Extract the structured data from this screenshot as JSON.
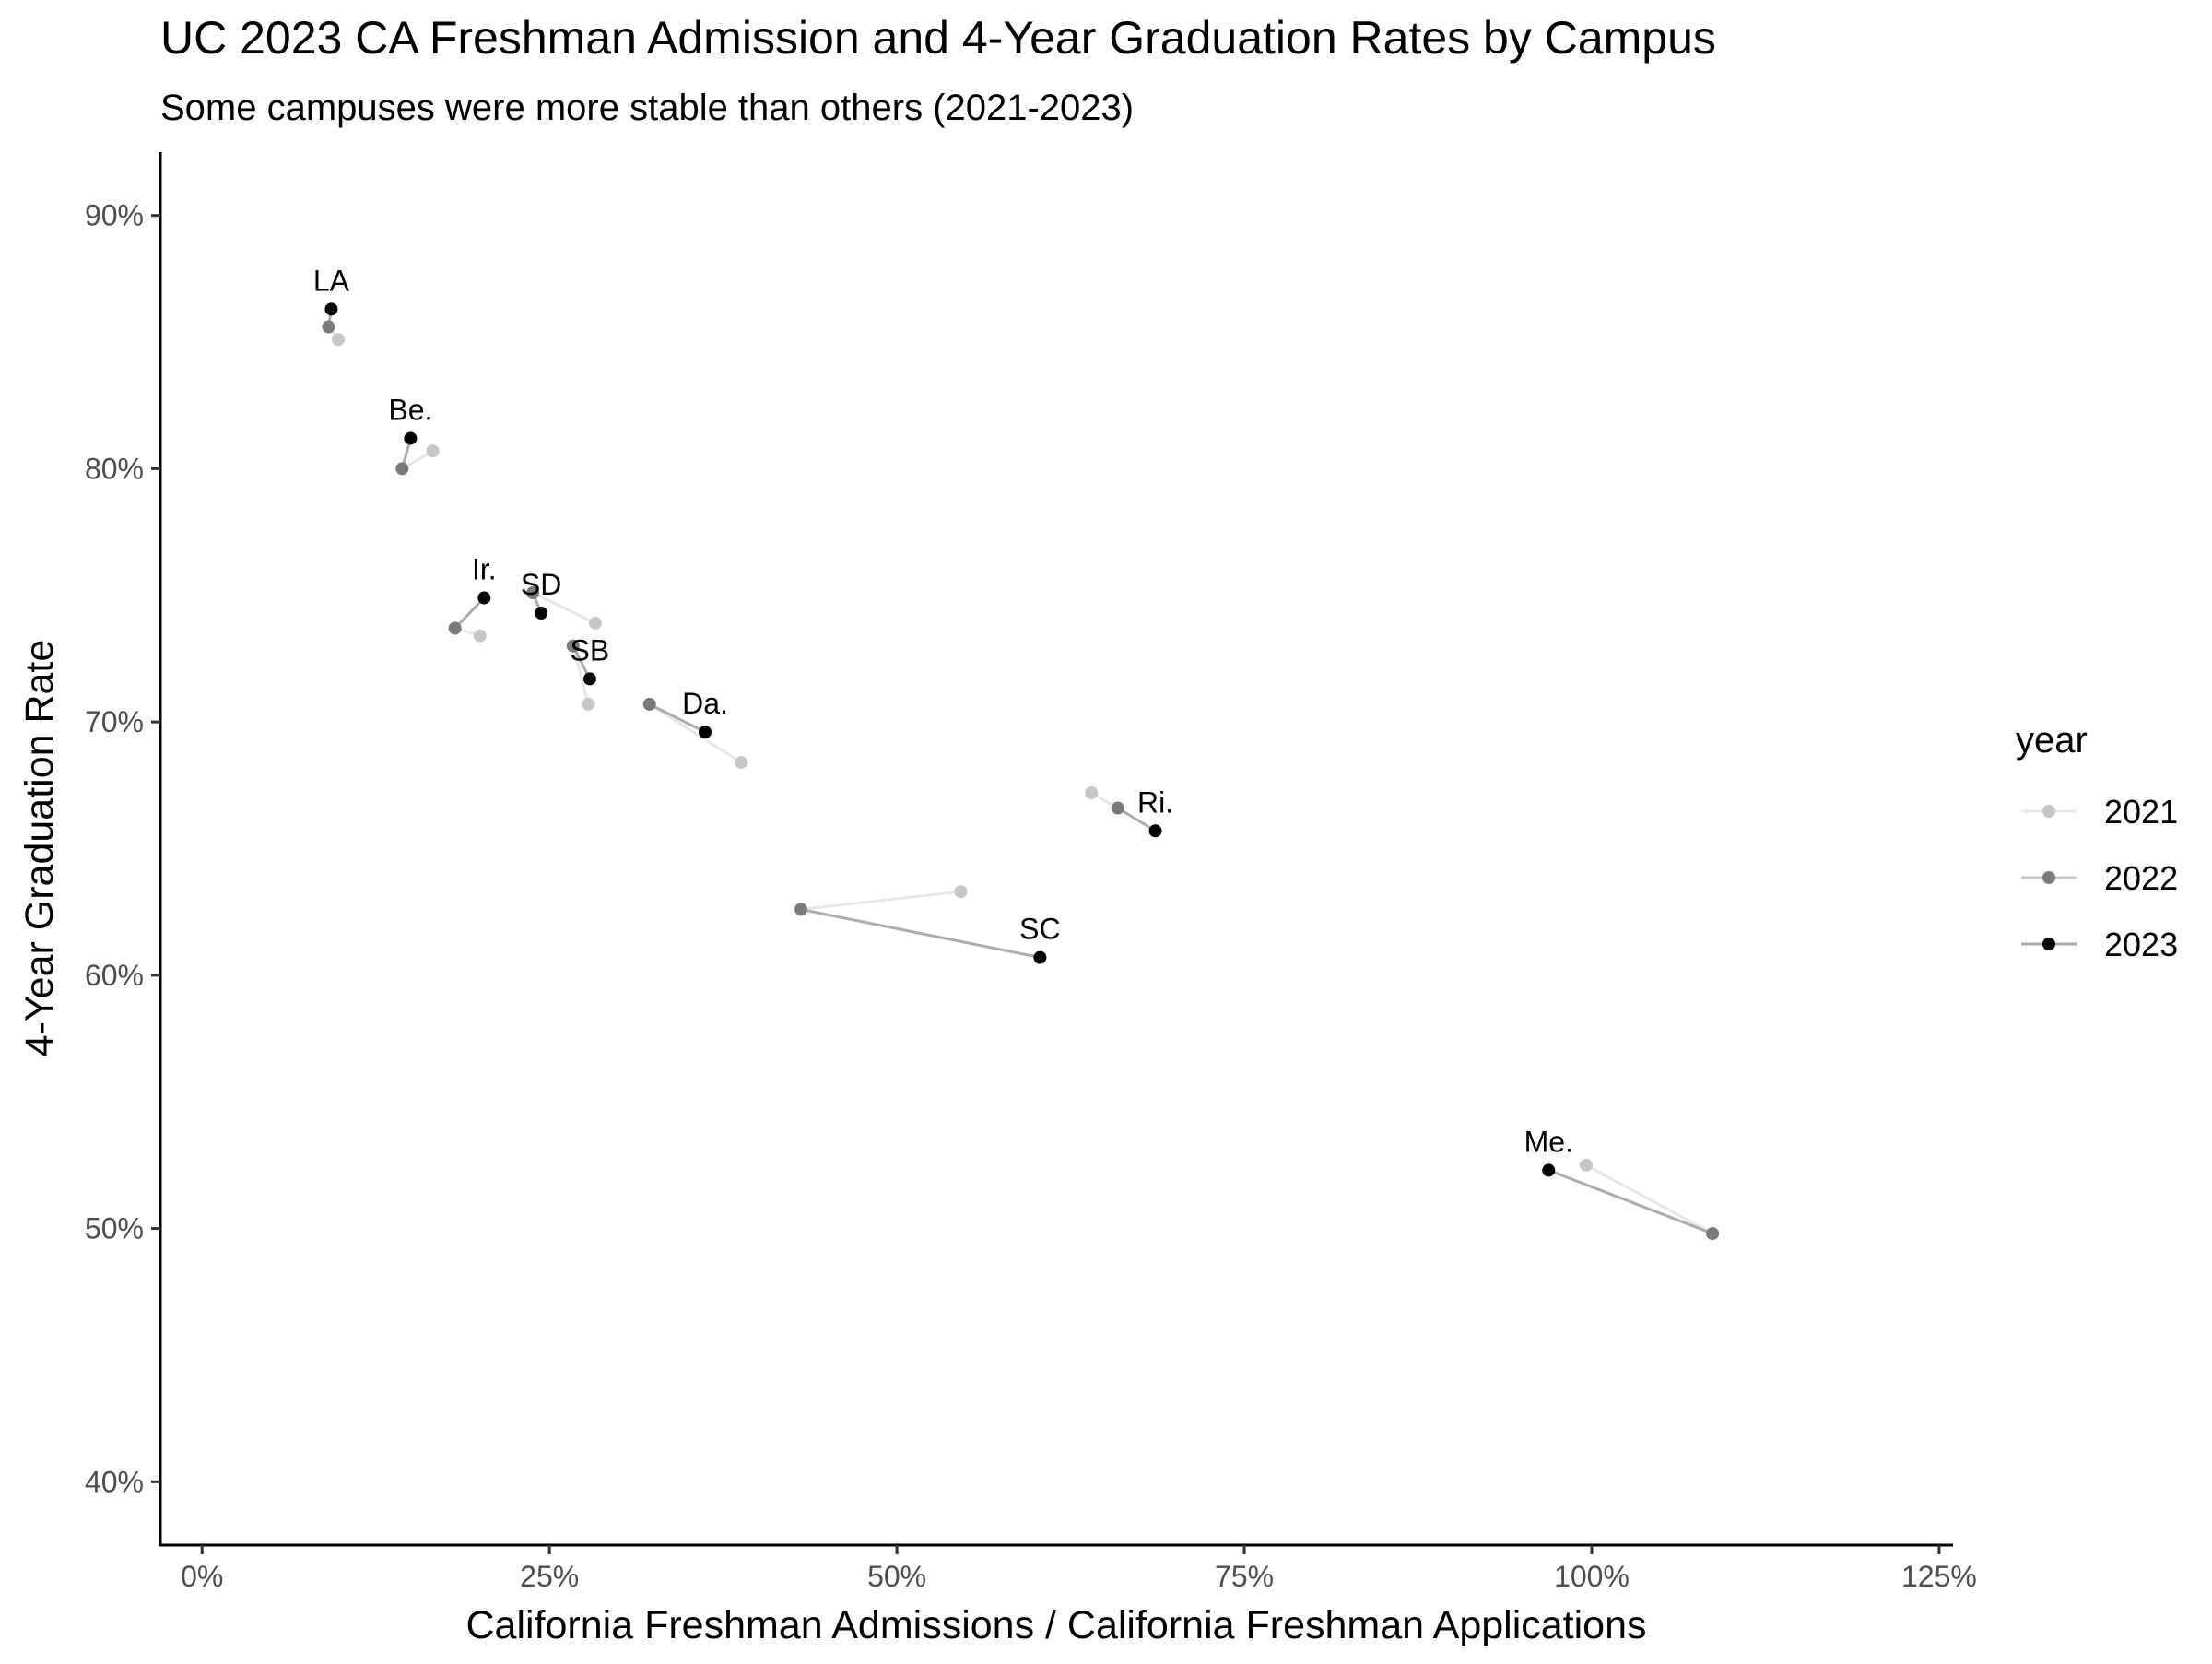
{
  "chart_data": {
    "type": "scatter",
    "title": "UC 2023 CA Freshman Admission and 4-Year Graduation Rates by Campus",
    "subtitle": "Some campuses were more stable than others (2021-2023)",
    "xlabel": "California Freshman Admissions / California Freshman Applications",
    "ylabel": "4-Year Graduation Rate",
    "xlim": [
      -0.03,
      1.26
    ],
    "ylim": [
      0.375,
      0.925
    ],
    "x_ticks": [
      0,
      0.25,
      0.5,
      0.75,
      1.0,
      1.25
    ],
    "x_tick_labels": [
      "0%",
      "25%",
      "50%",
      "75%",
      "100%",
      "125%"
    ],
    "y_ticks": [
      0.4,
      0.5,
      0.6,
      0.7,
      0.8,
      0.9
    ],
    "y_tick_labels": [
      "40%",
      "50%",
      "60%",
      "70%",
      "80%",
      "90%"
    ],
    "grid": false,
    "legend": {
      "title": "year",
      "position": "right",
      "entries": [
        "2021",
        "2022",
        "2023"
      ]
    },
    "series_colors": {
      "2021": "#c6c6c6",
      "2022": "#7a7a7a",
      "2023": "#000000"
    },
    "segment_colors": {
      "2021-2022": "#e6e6e6",
      "2022-2023": "#ababab"
    },
    "campuses": [
      {
        "label": "LA",
        "points": [
          {
            "year": "2021",
            "x": 0.098,
            "y": 0.851
          },
          {
            "year": "2022",
            "x": 0.091,
            "y": 0.856
          },
          {
            "year": "2023",
            "x": 0.093,
            "y": 0.863
          }
        ]
      },
      {
        "label": "Be.",
        "points": [
          {
            "year": "2021",
            "x": 0.166,
            "y": 0.807
          },
          {
            "year": "2022",
            "x": 0.144,
            "y": 0.8
          },
          {
            "year": "2023",
            "x": 0.15,
            "y": 0.812
          }
        ]
      },
      {
        "label": "Ir.",
        "points": [
          {
            "year": "2021",
            "x": 0.2,
            "y": 0.734
          },
          {
            "year": "2022",
            "x": 0.182,
            "y": 0.737
          },
          {
            "year": "2023",
            "x": 0.203,
            "y": 0.749
          }
        ]
      },
      {
        "label": "SD",
        "points": [
          {
            "year": "2021",
            "x": 0.283,
            "y": 0.739
          },
          {
            "year": "2022",
            "x": 0.238,
            "y": 0.751
          },
          {
            "year": "2023",
            "x": 0.244,
            "y": 0.743
          }
        ]
      },
      {
        "label": "SB",
        "points": [
          {
            "year": "2021",
            "x": 0.278,
            "y": 0.707
          },
          {
            "year": "2022",
            "x": 0.267,
            "y": 0.73
          },
          {
            "year": "2023",
            "x": 0.279,
            "y": 0.717
          }
        ]
      },
      {
        "label": "Da.",
        "points": [
          {
            "year": "2021",
            "x": 0.388,
            "y": 0.684
          },
          {
            "year": "2022",
            "x": 0.322,
            "y": 0.707
          },
          {
            "year": "2023",
            "x": 0.362,
            "y": 0.696
          }
        ]
      },
      {
        "label": "Ri.",
        "points": [
          {
            "year": "2021",
            "x": 0.64,
            "y": 0.672
          },
          {
            "year": "2022",
            "x": 0.659,
            "y": 0.666
          },
          {
            "year": "2023",
            "x": 0.686,
            "y": 0.657
          }
        ]
      },
      {
        "label": "SC",
        "points": [
          {
            "year": "2021",
            "x": 0.546,
            "y": 0.633
          },
          {
            "year": "2022",
            "x": 0.431,
            "y": 0.626
          },
          {
            "year": "2023",
            "x": 0.603,
            "y": 0.607
          }
        ]
      },
      {
        "label": "Me.",
        "points": [
          {
            "year": "2021",
            "x": 0.996,
            "y": 0.525
          },
          {
            "year": "2022",
            "x": 1.087,
            "y": 0.498
          },
          {
            "year": "2023",
            "x": 0.969,
            "y": 0.523
          }
        ]
      }
    ]
  }
}
